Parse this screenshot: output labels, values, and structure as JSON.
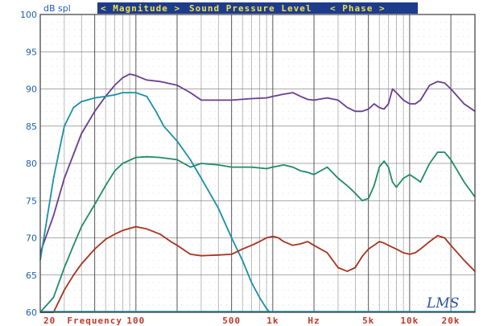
{
  "chart_data": {
    "type": "line",
    "ylabel": "dB spl",
    "xlabel": "Frequency",
    "banner": {
      "magnitude": "< Magnitude >",
      "title": "Sound Pressure Level",
      "phase": "< Phase >",
      "background": "#1e3c8c",
      "text_color": "#f0e04a"
    },
    "x_scale": "log",
    "xlim": [
      20,
      30000
    ],
    "ylim": [
      60,
      100
    ],
    "y_ticks": [
      "100",
      "95",
      "90",
      "85",
      "80",
      "75",
      "70",
      "65",
      "60"
    ],
    "x_tick_labels": [
      {
        "text": "20",
        "x": 20
      },
      {
        "text": "100",
        "x": 100
      },
      {
        "text": "500",
        "x": 500
      },
      {
        "text": "1k",
        "x": 1000
      },
      {
        "text": "Hz",
        "x": 2000
      },
      {
        "text": "5k",
        "x": 5000
      },
      {
        "text": "10k",
        "x": 10000
      },
      {
        "text": "20k",
        "x": 20000
      }
    ],
    "logo": "LMS",
    "grid": true,
    "series": [
      {
        "color": "#6a3d8f",
        "points": [
          [
            20,
            68
          ],
          [
            25,
            73
          ],
          [
            30,
            78
          ],
          [
            40,
            84
          ],
          [
            50,
            87
          ],
          [
            60,
            89
          ],
          [
            70,
            90.5
          ],
          [
            80,
            91.5
          ],
          [
            90,
            92
          ],
          [
            100,
            91.8
          ],
          [
            120,
            91.2
          ],
          [
            150,
            91
          ],
          [
            200,
            90.5
          ],
          [
            250,
            89.5
          ],
          [
            300,
            88.5
          ],
          [
            400,
            88.5
          ],
          [
            500,
            88.5
          ],
          [
            700,
            88.7
          ],
          [
            900,
            88.8
          ],
          [
            1000,
            89
          ],
          [
            1200,
            89.3
          ],
          [
            1400,
            89.5
          ],
          [
            1600,
            89
          ],
          [
            1800,
            88.6
          ],
          [
            2000,
            88.5
          ],
          [
            2500,
            88.8
          ],
          [
            3000,
            88.5
          ],
          [
            3500,
            87.5
          ],
          [
            4000,
            87
          ],
          [
            4500,
            87
          ],
          [
            5000,
            87.3
          ],
          [
            5500,
            88
          ],
          [
            6000,
            87.5
          ],
          [
            6500,
            87.3
          ],
          [
            7000,
            88
          ],
          [
            7500,
            90
          ],
          [
            8000,
            89.5
          ],
          [
            9000,
            88.5
          ],
          [
            10000,
            88
          ],
          [
            11000,
            88
          ],
          [
            12000,
            88.5
          ],
          [
            14000,
            90.5
          ],
          [
            16000,
            91
          ],
          [
            18000,
            90.8
          ],
          [
            20000,
            90
          ],
          [
            25000,
            88
          ],
          [
            30000,
            87
          ]
        ]
      },
      {
        "color": "#1a8fa8",
        "points": [
          [
            20,
            67
          ],
          [
            25,
            78
          ],
          [
            30,
            85
          ],
          [
            35,
            87.5
          ],
          [
            40,
            88.3
          ],
          [
            50,
            88.8
          ],
          [
            60,
            89
          ],
          [
            70,
            89.2
          ],
          [
            80,
            89.5
          ],
          [
            100,
            89.5
          ],
          [
            120,
            89
          ],
          [
            140,
            87
          ],
          [
            160,
            85
          ],
          [
            200,
            83
          ],
          [
            250,
            80.5
          ],
          [
            300,
            78
          ],
          [
            400,
            74
          ],
          [
            500,
            70
          ],
          [
            600,
            67
          ],
          [
            700,
            64
          ],
          [
            800,
            62
          ],
          [
            900,
            60.5
          ],
          [
            950,
            60
          ]
        ]
      },
      {
        "color": "#1f8a6a",
        "points": [
          [
            20,
            58
          ],
          [
            25,
            62
          ],
          [
            30,
            66
          ],
          [
            35,
            69
          ],
          [
            40,
            71.5
          ],
          [
            50,
            74.5
          ],
          [
            60,
            77
          ],
          [
            70,
            79
          ],
          [
            80,
            80
          ],
          [
            100,
            80.8
          ],
          [
            120,
            80.9
          ],
          [
            150,
            80.8
          ],
          [
            200,
            80.5
          ],
          [
            250,
            79.5
          ],
          [
            300,
            80
          ],
          [
            400,
            79.8
          ],
          [
            500,
            79.5
          ],
          [
            700,
            79.5
          ],
          [
            900,
            79.3
          ],
          [
            1000,
            79.5
          ],
          [
            1200,
            79.8
          ],
          [
            1400,
            79.5
          ],
          [
            1600,
            79
          ],
          [
            1800,
            78.8
          ],
          [
            2000,
            78.5
          ],
          [
            2500,
            79.5
          ],
          [
            3000,
            78
          ],
          [
            3500,
            77
          ],
          [
            4000,
            76
          ],
          [
            4500,
            75
          ],
          [
            5000,
            75.3
          ],
          [
            5500,
            77
          ],
          [
            6000,
            79.5
          ],
          [
            6500,
            80.3
          ],
          [
            7000,
            79.5
          ],
          [
            7500,
            77.5
          ],
          [
            8000,
            76.8
          ],
          [
            9000,
            78
          ],
          [
            10000,
            78.5
          ],
          [
            11000,
            78
          ],
          [
            12000,
            77.5
          ],
          [
            14000,
            80
          ],
          [
            16000,
            81.5
          ],
          [
            18000,
            81.5
          ],
          [
            20000,
            80.5
          ],
          [
            25000,
            77.5
          ],
          [
            30000,
            75.5
          ]
        ]
      },
      {
        "color": "#a8321e",
        "points": [
          [
            20,
            58
          ],
          [
            25,
            60
          ],
          [
            30,
            63
          ],
          [
            35,
            65
          ],
          [
            40,
            66.5
          ],
          [
            50,
            68.5
          ],
          [
            60,
            69.8
          ],
          [
            70,
            70.5
          ],
          [
            80,
            71
          ],
          [
            100,
            71.5
          ],
          [
            120,
            71.2
          ],
          [
            150,
            70.5
          ],
          [
            180,
            69.5
          ],
          [
            200,
            69
          ],
          [
            250,
            67.8
          ],
          [
            300,
            67.6
          ],
          [
            400,
            67.7
          ],
          [
            500,
            67.8
          ],
          [
            600,
            68.5
          ],
          [
            700,
            69
          ],
          [
            800,
            69.5
          ],
          [
            900,
            70
          ],
          [
            1000,
            70.2
          ],
          [
            1100,
            70
          ],
          [
            1200,
            69.5
          ],
          [
            1400,
            69
          ],
          [
            1600,
            69.2
          ],
          [
            1800,
            69.5
          ],
          [
            2000,
            69
          ],
          [
            2500,
            68
          ],
          [
            3000,
            66
          ],
          [
            3500,
            65.5
          ],
          [
            4000,
            66
          ],
          [
            4500,
            67.5
          ],
          [
            5000,
            68.5
          ],
          [
            5500,
            69
          ],
          [
            6000,
            69.5
          ],
          [
            6500,
            69.3
          ],
          [
            7000,
            69
          ],
          [
            8000,
            68.5
          ],
          [
            9000,
            68
          ],
          [
            10000,
            67.8
          ],
          [
            11000,
            68
          ],
          [
            12000,
            68.5
          ],
          [
            14000,
            69.5
          ],
          [
            16000,
            70.3
          ],
          [
            18000,
            70
          ],
          [
            20000,
            69
          ],
          [
            25000,
            67
          ],
          [
            30000,
            65.5
          ]
        ]
      }
    ]
  }
}
